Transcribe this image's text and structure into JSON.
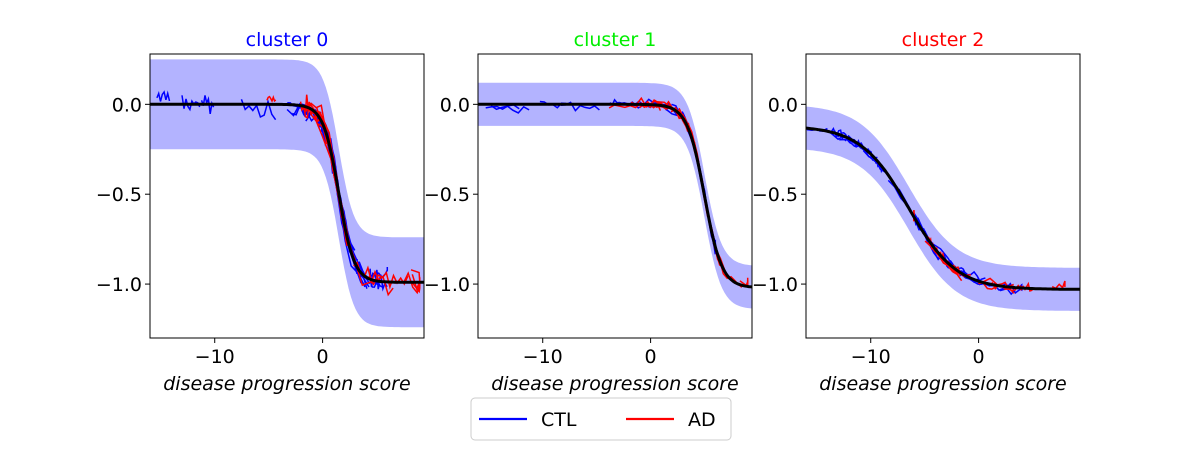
{
  "colors": {
    "ctl": "#0000ff",
    "ad": "#ff0000",
    "fit": "#000000",
    "band": "#b3b3ff",
    "title_0": "#0000ff",
    "title_1": "#00ee00",
    "title_2": "#ff0000"
  },
  "legend": {
    "items": [
      {
        "label": "CTL",
        "color": "#0000ff"
      },
      {
        "label": "AD",
        "color": "#ff0000"
      }
    ],
    "location": "bottom-center"
  },
  "chart_data": [
    {
      "type": "line",
      "title": "cluster 0",
      "xlabel": "disease progression score",
      "ylabel": "",
      "xlim": [
        -16,
        9.4
      ],
      "ylim": [
        -1.3,
        0.28
      ],
      "xticks": [
        -10,
        0
      ],
      "xtick_labels": [
        "−10",
        "0"
      ],
      "yticks": [
        0.0,
        -0.5,
        -1.0
      ],
      "ytick_labels": [
        "0.0",
        "−0.5",
        "−1.0"
      ],
      "grid": false,
      "fit": {
        "name": "",
        "upper": 0.0,
        "lower": -0.99,
        "midpoint": 1.5,
        "slope": 1.4
      },
      "band": {
        "upper_offset": 0.25
      },
      "series": [
        {
          "group": "CTL",
          "x_range": [
            -16,
            6
          ],
          "n": 30
        },
        {
          "group": "AD",
          "x_range": [
            -6,
            9
          ],
          "n": 22
        }
      ]
    },
    {
      "type": "line",
      "title": "cluster 1",
      "xlabel": "disease progression score",
      "ylabel": "",
      "xlim": [
        -16,
        9.4
      ],
      "ylim": [
        -1.3,
        0.28
      ],
      "xticks": [
        -10,
        0
      ],
      "xtick_labels": [
        "−10",
        "0"
      ],
      "yticks": [
        0.0,
        -0.5,
        -1.0
      ],
      "ytick_labels": [
        "0.0",
        "−0.5",
        "−1.0"
      ],
      "grid": false,
      "fit": {
        "name": "",
        "upper": 0.0,
        "lower": -1.02,
        "midpoint": 5.0,
        "slope": 1.25
      },
      "band": {
        "upper_offset": 0.12
      },
      "series": [
        {
          "group": "CTL",
          "x_range": [
            -16,
            6
          ],
          "n": 30
        },
        {
          "group": "AD",
          "x_range": [
            -4,
            9
          ],
          "n": 22
        }
      ]
    },
    {
      "type": "line",
      "title": "cluster 2",
      "xlabel": "disease progression score",
      "ylabel": "",
      "xlim": [
        -16,
        9.4
      ],
      "ylim": [
        -1.3,
        0.28
      ],
      "xticks": [
        -10,
        0
      ],
      "xtick_labels": [
        "−10",
        "0"
      ],
      "yticks": [
        0.0,
        -0.5,
        -1.0
      ],
      "ytick_labels": [
        "0.0",
        "−0.5",
        "−1.0"
      ],
      "grid": false,
      "fit": {
        "name": "",
        "upper": -0.12,
        "lower": -1.03,
        "midpoint": -6.5,
        "slope": 0.45
      },
      "band": {
        "upper_offset": 0.12
      },
      "series": [
        {
          "group": "CTL",
          "x_range": [
            -16,
            4
          ],
          "n": 30
        },
        {
          "group": "AD",
          "x_range": [
            -6,
            8
          ],
          "n": 22
        }
      ]
    }
  ]
}
